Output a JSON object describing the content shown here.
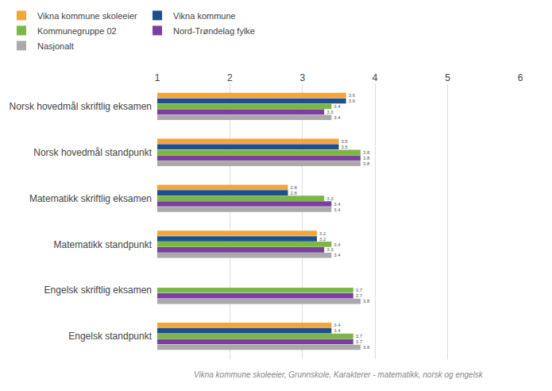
{
  "chart_data": {
    "type": "bar",
    "orientation": "horizontal",
    "categories": [
      "Norsk hovedmål skriftlig eksamen",
      "Norsk hovedmål standpunkt",
      "Matematikk skriftlig eksamen",
      "Matematikk standpunkt",
      "Engelsk skriftlig eksamen",
      "Engelsk standpunkt"
    ],
    "series": [
      {
        "name": "Vikna kommune skoleeier",
        "color": "#F4A53A",
        "values": [
          3.6,
          3.5,
          2.8,
          3.2,
          null,
          3.4
        ]
      },
      {
        "name": "Vikna kommune",
        "color": "#1F4E8C",
        "values": [
          3.6,
          3.5,
          2.8,
          3.2,
          null,
          3.4
        ]
      },
      {
        "name": "Kommunegruppe 02",
        "color": "#7AB648",
        "values": [
          3.4,
          3.8,
          3.3,
          3.4,
          3.7,
          3.7
        ]
      },
      {
        "name": "Nord-Trøndelag fylke",
        "color": "#7B3FA0",
        "values": [
          3.3,
          3.8,
          3.4,
          3.3,
          3.7,
          3.7
        ]
      },
      {
        "name": "Nasjonalt",
        "color": "#AAAAAA",
        "values": [
          3.4,
          3.8,
          3.4,
          3.4,
          3.8,
          3.8
        ]
      }
    ],
    "xlim": [
      1,
      6
    ],
    "xticks": [
      1,
      2,
      3,
      4,
      5,
      6
    ],
    "grid": true,
    "data_labels": true,
    "legend": "top left",
    "annotations": [
      "Vikna kommune skoleeier, Grunnskole, Karakterer - matematikk, norsk og engelsk"
    ]
  }
}
